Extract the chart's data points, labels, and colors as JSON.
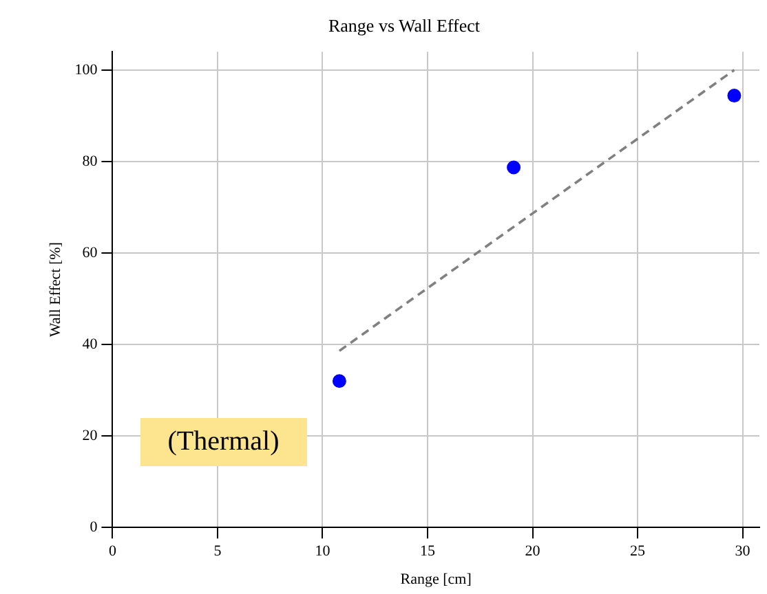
{
  "chart_data": {
    "type": "scatter",
    "title": "Range vs Wall Effect",
    "xlabel": "Range [cm]",
    "ylabel": "Wall Effect [%]",
    "xlim": [
      0,
      30.8
    ],
    "xticks": [
      0,
      5,
      10,
      15,
      20,
      25,
      30
    ],
    "ylim": [
      0,
      104
    ],
    "yticks": [
      0,
      20,
      40,
      60,
      80,
      100
    ],
    "grid": true,
    "legend": false,
    "marker": "circle",
    "series": [
      {
        "type": "scatter",
        "color": "#0000ff",
        "x": [
          10.8,
          19.1,
          29.6
        ],
        "values": [
          32,
          78.7,
          94.4
        ]
      },
      {
        "type": "line",
        "color": "#808080",
        "line_style": "dashed",
        "marker": "none",
        "x": [
          10.8,
          29.6
        ],
        "values": [
          38.6,
          100
        ]
      }
    ],
    "annotations": [
      "(Thermal)"
    ]
  }
}
